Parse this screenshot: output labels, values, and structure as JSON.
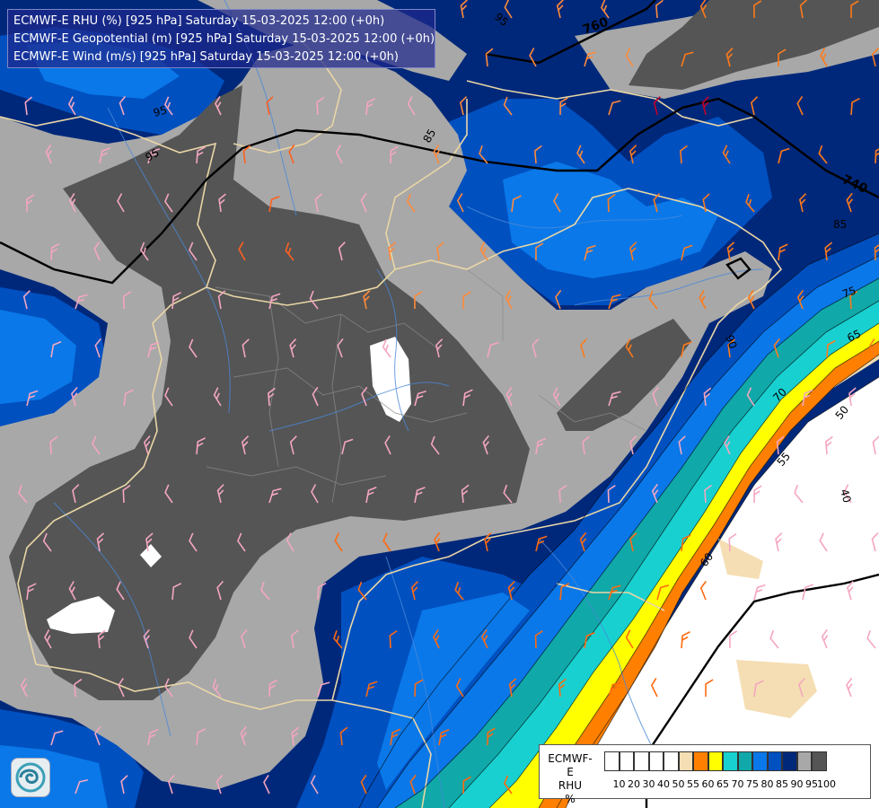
{
  "title": {
    "line1": "ECMWF-E RHU (%) [925 hPa] Saturday 15-03-2025 12:00 (+0h)",
    "line2": "ECMWF-E Geopotential (m) [925 hPa] Saturday 15-03-2025 12:00 (+0h)",
    "line3": "ECMWF-E Wind (m/s) [925 hPa] Saturday 15-03-2025 12:00 (+0h)"
  },
  "legend": {
    "title_line1": "ECMWF-E",
    "title_line2": "RHU",
    "title_line3": "%",
    "colors": [
      "#ffffff",
      "#ffffff",
      "#ffffff",
      "#ffffff",
      "#ffffff",
      "#f5deb3",
      "#ff8000",
      "#ffff00",
      "#18d0d0",
      "#10a8a8",
      "#0a78e8",
      "#0050c0",
      "#00287a",
      "#a8a8a8",
      "#555555"
    ],
    "ticks": [
      "10",
      "20",
      "30",
      "40",
      "50",
      "55",
      "60",
      "65",
      "70",
      "75",
      "80",
      "85",
      "90",
      "95",
      "100"
    ]
  },
  "contour_labels": {
    "geopotential": [
      "760",
      "740"
    ],
    "rhu": [
      "95",
      "95",
      "95",
      "85",
      "85",
      "75",
      "65",
      "70",
      "90",
      "50",
      "55",
      "60",
      "40"
    ]
  },
  "logo_icon": "ecmwf-swirl-icon"
}
